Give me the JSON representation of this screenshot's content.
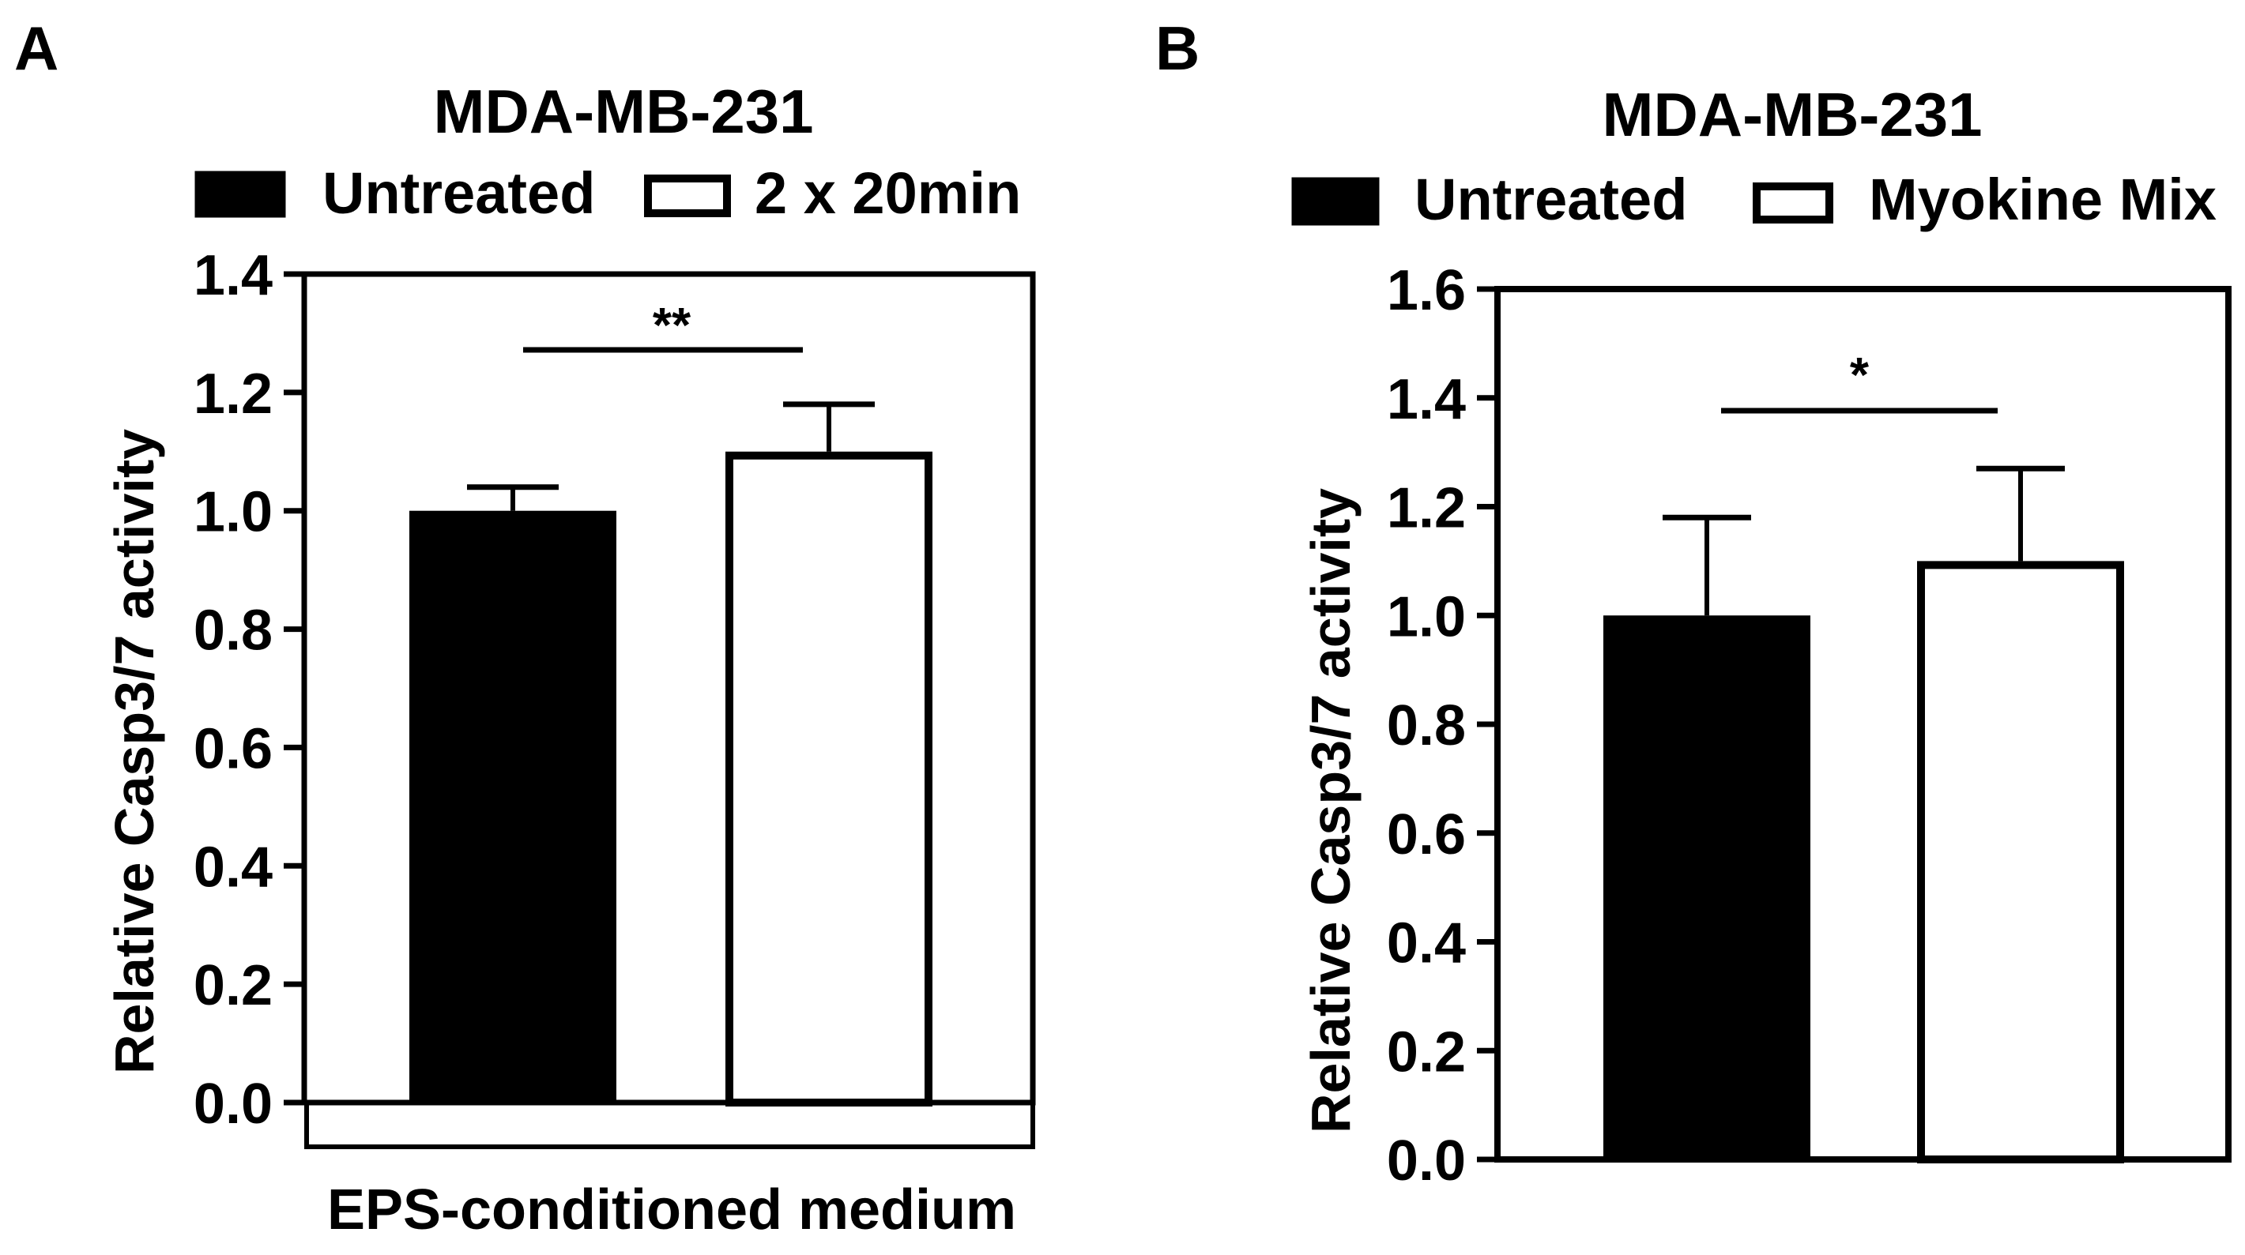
{
  "chart_data": [
    {
      "panel": "A",
      "type": "bar",
      "title": "MDA-MB-231",
      "ylabel": "Relative Casp3/7 activity",
      "xlabel": "EPS-conditioned medium",
      "ylim": [
        0,
        1.4
      ],
      "yticks": [
        "0.0",
        "0.2",
        "0.4",
        "0.6",
        "0.8",
        "1.0",
        "1.2",
        "1.4"
      ],
      "categories": [
        "Untreated",
        "2 x 20min"
      ],
      "series": [
        {
          "name": "Untreated",
          "fill": "#000000",
          "value": 1.0,
          "error": 0.04
        },
        {
          "name": "2 x 20min",
          "fill": "#ffffff",
          "value": 1.1,
          "error": 0.08
        }
      ],
      "significance": "**"
    },
    {
      "panel": "B",
      "type": "bar",
      "title": "MDA-MB-231",
      "ylabel": "Relative Casp3/7 activity",
      "xlabel": "",
      "ylim": [
        0,
        1.6
      ],
      "yticks": [
        "0.0",
        "0.2",
        "0.4",
        "0.6",
        "0.8",
        "1.0",
        "1.2",
        "1.4",
        "1.6"
      ],
      "categories": [
        "Untreated",
        "Myokine Mix"
      ],
      "series": [
        {
          "name": "Untreated",
          "fill": "#000000",
          "value": 1.0,
          "error": 0.18
        },
        {
          "name": "Myokine Mix",
          "fill": "#ffffff",
          "value": 1.1,
          "error": 0.17
        }
      ],
      "significance": "*"
    }
  ]
}
